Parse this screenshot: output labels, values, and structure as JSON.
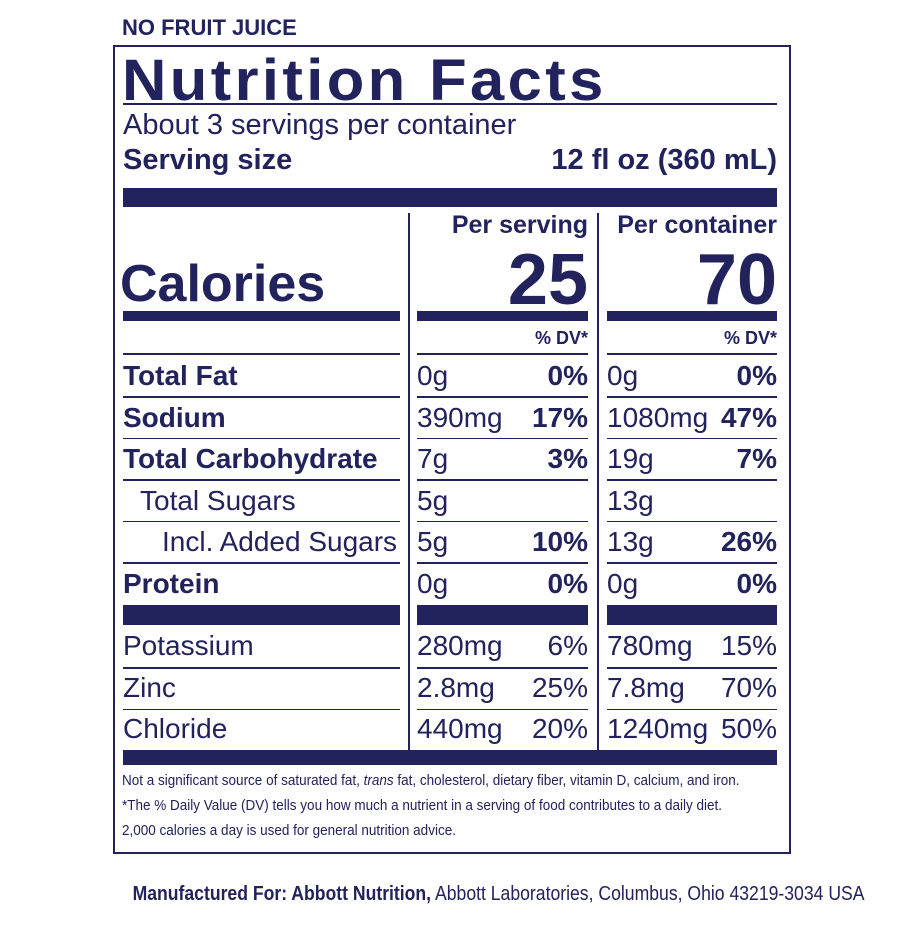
{
  "top_note": "NO FRUIT JUICE",
  "title": "Nutrition Facts",
  "servings": "About 3 servings per container",
  "serving_size": {
    "label": "Serving size",
    "value": "12 fl oz (360 mL)"
  },
  "columns": [
    "Per serving",
    "Per container"
  ],
  "calories": {
    "label": "Calories",
    "values": [
      25,
      70
    ]
  },
  "dv_header": [
    "% DV*",
    "% DV*"
  ],
  "nutrients": [
    {
      "name": "Total Fat",
      "serving": [
        "0g",
        "0%"
      ],
      "container": [
        "0g",
        "0%"
      ]
    },
    {
      "name": "Sodium",
      "serving": [
        "390mg",
        "17%"
      ],
      "container": [
        "1080mg",
        "47%"
      ]
    },
    {
      "name": "Total Carbohydrate",
      "serving": [
        "7g",
        "3%"
      ],
      "container": [
        "19g",
        "7%"
      ]
    },
    {
      "name": "Total Sugars",
      "serving": [
        "5g"
      ],
      "container": [
        "13g"
      ]
    },
    {
      "name": "Incl. Added Sugars",
      "serving": [
        "5g",
        "10%"
      ],
      "container": [
        "13g",
        "26%"
      ]
    },
    {
      "name": "Protein",
      "serving": [
        "0g",
        "0%"
      ],
      "container": [
        "0g",
        "0%"
      ]
    }
  ],
  "minerals": [
    {
      "name": "Potassium",
      "serving": [
        "280mg",
        "6%"
      ],
      "container": [
        "780mg",
        "15%"
      ]
    },
    {
      "name": "Zinc",
      "serving": [
        "2.8mg",
        "25%"
      ],
      "container": [
        "7.8mg",
        "70%"
      ]
    },
    {
      "name": "Chloride",
      "serving": [
        "440mg",
        "20%"
      ],
      "container": [
        "1240mg",
        "50%"
      ]
    }
  ],
  "footnotes": [
    [
      "Not a significant source of saturated fat, ",
      "trans",
      " fat, cholesterol, dietary fiber, vitamin D, calcium, and iron."
    ],
    [
      "*The % Daily Value (DV) tells you how much a nutrient in a serving of food contributes to a daily diet."
    ],
    [
      "2,000 calories a day is used for general nutrition advice."
    ]
  ],
  "manufacturer": {
    "label": "Manufactured For: Abbott Nutrition,",
    "text": "Abbott Laboratories, Columbus, Ohio 43219-3034 USA"
  }
}
